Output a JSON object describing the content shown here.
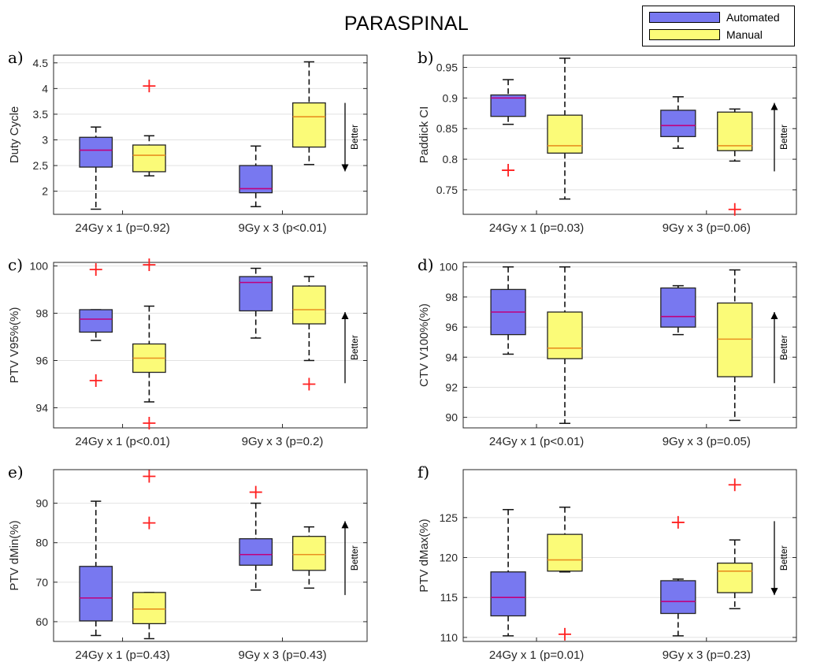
{
  "title": "PARASPINAL",
  "legend": {
    "items": [
      {
        "label": "Automated",
        "color": "#7878f0"
      },
      {
        "label": "Manual",
        "color": "#fbfb78"
      }
    ]
  },
  "colors": {
    "automated_fill": "#7878f0",
    "manual_fill": "#fbfb78",
    "automated_median": "#c0007c",
    "manual_median": "#e89020",
    "outlier": "#ff2020",
    "grid": "#e2e2e2"
  },
  "better_label": "Better",
  "chart_data": [
    {
      "type": "box",
      "panel": "a)",
      "ylabel": "Duty Cycle",
      "ylim": [
        1.55,
        4.65
      ],
      "yticks": [
        "2",
        "2.5",
        "3",
        "3.5",
        "4",
        "4.5"
      ],
      "ytick_values": [
        2,
        2.5,
        3,
        3.5,
        4,
        4.5
      ],
      "categories": [
        "24Gy x 1 (p=0.92)",
        "9Gy x 3 (p<0.01)"
      ],
      "better": "down",
      "series": [
        {
          "name": "Automated",
          "boxes": [
            {
              "min": 1.65,
              "q1": 2.47,
              "median": 2.8,
              "q3": 3.05,
              "max": 3.25,
              "outliers": []
            },
            {
              "min": 1.7,
              "q1": 1.97,
              "median": 2.05,
              "q3": 2.5,
              "max": 2.88,
              "outliers": []
            }
          ]
        },
        {
          "name": "Manual",
          "boxes": [
            {
              "min": 2.3,
              "q1": 2.38,
              "median": 2.7,
              "q3": 2.9,
              "max": 3.08,
              "outliers": [
                4.05
              ]
            },
            {
              "min": 2.52,
              "q1": 2.86,
              "median": 3.45,
              "q3": 3.72,
              "max": 4.52,
              "outliers": []
            }
          ]
        }
      ]
    },
    {
      "type": "box",
      "panel": "b)",
      "ylabel": "Paddick CI",
      "ylim": [
        0.71,
        0.97
      ],
      "yticks": [
        "0.75",
        "0.8",
        "0.85",
        "0.9",
        "0.95"
      ],
      "ytick_values": [
        0.75,
        0.8,
        0.85,
        0.9,
        0.95
      ],
      "categories": [
        "24Gy x 1 (p=0.03)",
        "9Gy x 3 (p=0.06)"
      ],
      "better": "up",
      "series": [
        {
          "name": "Automated",
          "boxes": [
            {
              "min": 0.857,
              "q1": 0.87,
              "median": 0.9,
              "q3": 0.905,
              "max": 0.93,
              "outliers": [
                0.782
              ]
            },
            {
              "min": 0.818,
              "q1": 0.837,
              "median": 0.855,
              "q3": 0.88,
              "max": 0.902,
              "outliers": []
            }
          ]
        },
        {
          "name": "Manual",
          "boxes": [
            {
              "min": 0.735,
              "q1": 0.81,
              "median": 0.822,
              "q3": 0.872,
              "max": 0.965,
              "outliers": []
            },
            {
              "min": 0.797,
              "q1": 0.814,
              "median": 0.822,
              "q3": 0.877,
              "max": 0.882,
              "outliers": [
                0.718
              ]
            }
          ]
        }
      ]
    },
    {
      "type": "box",
      "panel": "c)",
      "ylabel": "PTV V95%(%)",
      "ylim": [
        93.15,
        100.15
      ],
      "yticks": [
        "94",
        "96",
        "98",
        "100"
      ],
      "ytick_values": [
        94,
        96,
        98,
        100
      ],
      "categories": [
        "24Gy x 1 (p<0.01)",
        "9Gy x 3 (p=0.2)"
      ],
      "better": "up",
      "series": [
        {
          "name": "Automated",
          "boxes": [
            {
              "min": 96.85,
              "q1": 97.2,
              "median": 97.75,
              "q3": 98.15,
              "max": 98.15,
              "outliers": [
                99.85,
                95.15
              ]
            },
            {
              "min": 96.95,
              "q1": 98.1,
              "median": 99.3,
              "q3": 99.55,
              "max": 99.9,
              "outliers": []
            }
          ]
        },
        {
          "name": "Manual",
          "boxes": [
            {
              "min": 94.25,
              "q1": 95.5,
              "median": 96.1,
              "q3": 96.7,
              "max": 98.3,
              "outliers": [
                100.05,
                93.35
              ]
            },
            {
              "min": 96.0,
              "q1": 97.55,
              "median": 98.15,
              "q3": 99.15,
              "max": 99.55,
              "outliers": [
                95.0
              ]
            }
          ]
        }
      ]
    },
    {
      "type": "box",
      "panel": "d)",
      "ylabel": "CTV V100%(%)",
      "ylim": [
        89.3,
        100.3
      ],
      "yticks": [
        "90",
        "92",
        "94",
        "96",
        "98",
        "100"
      ],
      "ytick_values": [
        90,
        92,
        94,
        96,
        98,
        100
      ],
      "categories": [
        "24Gy x 1 (p<0.01)",
        "9Gy x 3 (p=0.05)"
      ],
      "better": "up",
      "series": [
        {
          "name": "Automated",
          "boxes": [
            {
              "min": 94.2,
              "q1": 95.5,
              "median": 97.0,
              "q3": 98.5,
              "max": 100.0,
              "outliers": []
            },
            {
              "min": 95.5,
              "q1": 96.0,
              "median": 96.7,
              "q3": 98.6,
              "max": 98.75,
              "outliers": []
            }
          ]
        },
        {
          "name": "Manual",
          "boxes": [
            {
              "min": 89.6,
              "q1": 93.9,
              "median": 94.6,
              "q3": 97.0,
              "max": 100.0,
              "outliers": []
            },
            {
              "min": 89.8,
              "q1": 92.7,
              "median": 95.2,
              "q3": 97.6,
              "max": 99.8,
              "outliers": []
            }
          ]
        }
      ]
    },
    {
      "type": "box",
      "panel": "e)",
      "ylabel": "PTV dMin(%)",
      "ylim": [
        55,
        98.5
      ],
      "yticks": [
        "60",
        "70",
        "80",
        "90"
      ],
      "ytick_values": [
        60,
        70,
        80,
        90
      ],
      "categories": [
        "24Gy x 1 (p=0.43)",
        "9Gy x 3 (p=0.43)"
      ],
      "better": "up",
      "series": [
        {
          "name": "Automated",
          "boxes": [
            {
              "min": 56.5,
              "q1": 60.2,
              "median": 66.0,
              "q3": 74.0,
              "max": 90.5,
              "outliers": []
            },
            {
              "min": 68.0,
              "q1": 74.3,
              "median": 77.0,
              "q3": 81.0,
              "max": 90.0,
              "outliers": [
                92.8
              ]
            }
          ]
        },
        {
          "name": "Manual",
          "boxes": [
            {
              "min": 55.7,
              "q1": 59.5,
              "median": 63.2,
              "q3": 67.4,
              "max": 67.4,
              "outliers": [
                96.8,
                85.0
              ]
            },
            {
              "min": 68.5,
              "q1": 73.0,
              "median": 77.0,
              "q3": 81.6,
              "max": 84.0,
              "outliers": []
            }
          ]
        }
      ]
    },
    {
      "type": "box",
      "panel": "f)",
      "ylabel": "PTV dMax(%)",
      "ylim": [
        109.5,
        131.0
      ],
      "yticks": [
        "110",
        "115",
        "120",
        "125"
      ],
      "ytick_values": [
        110,
        115,
        120,
        125
      ],
      "categories": [
        "24Gy x 1 (p=0.01)",
        "9Gy x 3 (p=0.23)"
      ],
      "better": "down",
      "series": [
        {
          "name": "Automated",
          "boxes": [
            {
              "min": 110.2,
              "q1": 112.7,
              "median": 115.0,
              "q3": 118.2,
              "max": 126.0,
              "outliers": []
            },
            {
              "min": 110.2,
              "q1": 113.0,
              "median": 114.5,
              "q3": 117.1,
              "max": 117.3,
              "outliers": [
                124.4
              ]
            }
          ]
        },
        {
          "name": "Manual",
          "boxes": [
            {
              "min": 118.2,
              "q1": 118.3,
              "median": 119.7,
              "q3": 122.9,
              "max": 126.3,
              "outliers": [
                110.4
              ]
            },
            {
              "min": 113.6,
              "q1": 115.6,
              "median": 118.3,
              "q3": 119.3,
              "max": 122.2,
              "outliers": [
                129.1
              ]
            }
          ]
        }
      ]
    }
  ]
}
